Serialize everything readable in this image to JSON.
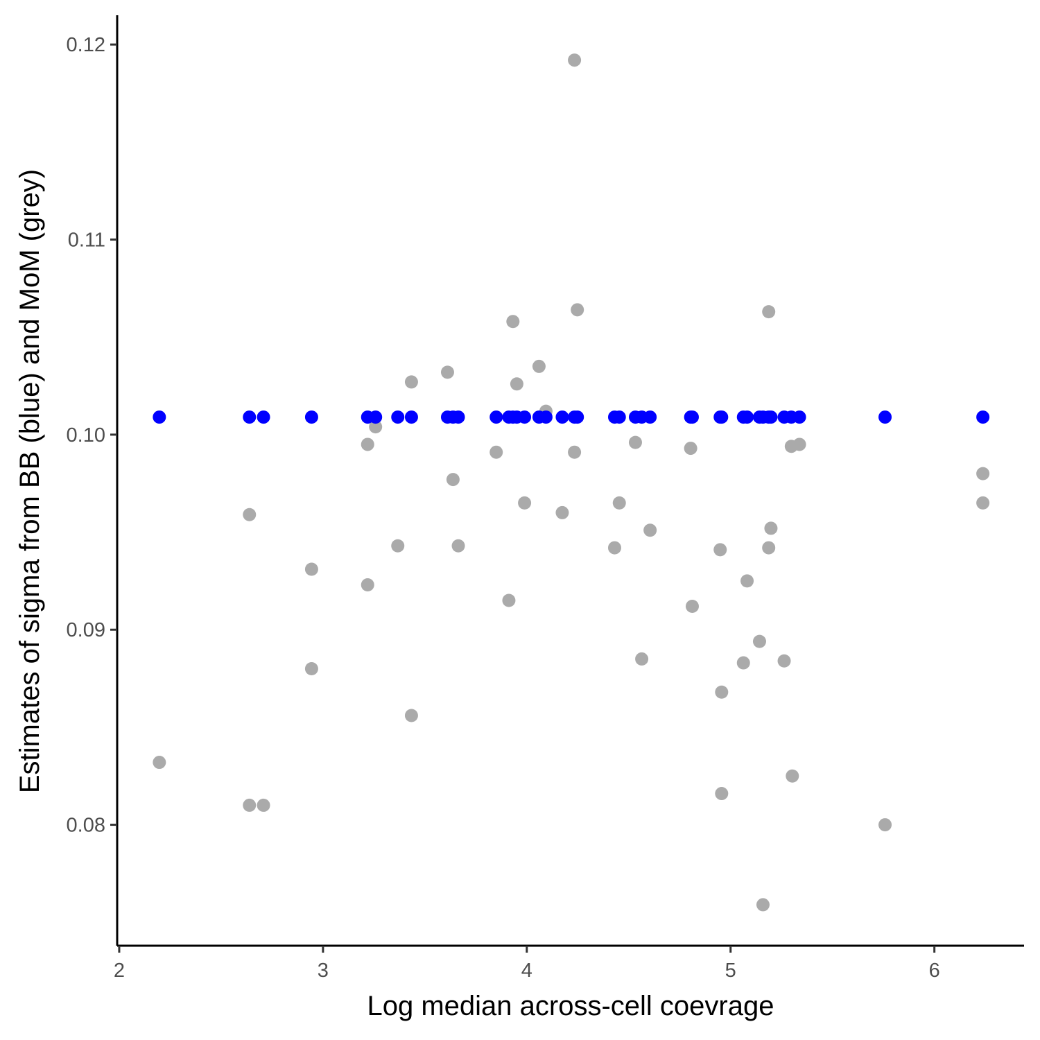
{
  "chart_data": {
    "type": "scatter",
    "title": "",
    "xlabel": "Log median across-cell coevrage",
    "ylabel": "Estimates of sigma from BB (blue) and MoM (grey)",
    "xlim": [
      1.99,
      6.44
    ],
    "ylim": [
      0.0738,
      0.1215
    ],
    "x_ticks": [
      2,
      3,
      4,
      5,
      6
    ],
    "x_tick_labels": [
      "2",
      "3",
      "4",
      "5",
      "6"
    ],
    "y_ticks": [
      0.08,
      0.09,
      0.1,
      0.11,
      0.12
    ],
    "y_tick_labels": [
      "0.08",
      "0.09",
      "0.10",
      "0.11",
      "0.12"
    ],
    "grid": false,
    "legend": "none",
    "series": [
      {
        "color": "#aaaaaa",
        "points": [
          [
            2.197,
            0.0832
          ],
          [
            2.639,
            0.0959
          ],
          [
            2.639,
            0.081
          ],
          [
            2.708,
            0.081
          ],
          [
            2.944,
            0.0931
          ],
          [
            2.944,
            0.088
          ],
          [
            3.219,
            0.0995
          ],
          [
            3.219,
            0.0923
          ],
          [
            3.258,
            0.1004
          ],
          [
            3.367,
            0.0943
          ],
          [
            3.434,
            0.1027
          ],
          [
            3.434,
            0.0856
          ],
          [
            3.611,
            0.1032
          ],
          [
            3.638,
            0.0977
          ],
          [
            3.664,
            0.0943
          ],
          [
            3.85,
            0.0991
          ],
          [
            3.912,
            0.0915
          ],
          [
            3.932,
            0.1058
          ],
          [
            3.951,
            0.1026
          ],
          [
            3.989,
            0.0965
          ],
          [
            4.06,
            0.1035
          ],
          [
            4.094,
            0.1012
          ],
          [
            4.174,
            0.096
          ],
          [
            4.234,
            0.1192
          ],
          [
            4.234,
            0.0991
          ],
          [
            4.248,
            0.1064
          ],
          [
            4.431,
            0.0942
          ],
          [
            4.454,
            0.0965
          ],
          [
            4.533,
            0.0996
          ],
          [
            4.564,
            0.0885
          ],
          [
            4.605,
            0.0951
          ],
          [
            4.804,
            0.0993
          ],
          [
            4.812,
            0.0912
          ],
          [
            4.949,
            0.0941
          ],
          [
            4.956,
            0.0868
          ],
          [
            4.956,
            0.0816
          ],
          [
            5.063,
            0.0883
          ],
          [
            5.081,
            0.0925
          ],
          [
            5.142,
            0.0894
          ],
          [
            5.159,
            0.0759
          ],
          [
            5.187,
            0.1063
          ],
          [
            5.187,
            0.0942
          ],
          [
            5.198,
            0.0952
          ],
          [
            5.263,
            0.0884
          ],
          [
            5.298,
            0.0994
          ],
          [
            5.303,
            0.0825
          ],
          [
            5.338,
            0.0995
          ],
          [
            5.758,
            0.08
          ],
          [
            6.238,
            0.098
          ],
          [
            6.238,
            0.0965
          ]
        ]
      },
      {
        "color": "#0000ff",
        "constant_y": 0.1009,
        "x": [
          2.197,
          2.639,
          2.708,
          2.944,
          3.219,
          3.258,
          3.367,
          3.434,
          3.611,
          3.638,
          3.664,
          3.85,
          3.912,
          3.932,
          3.951,
          3.989,
          4.06,
          4.094,
          4.174,
          4.234,
          4.248,
          4.431,
          4.454,
          4.533,
          4.564,
          4.605,
          4.804,
          4.812,
          4.949,
          4.956,
          5.063,
          5.081,
          5.142,
          5.159,
          5.187,
          5.198,
          5.263,
          5.298,
          5.338,
          5.758,
          6.238
        ]
      }
    ]
  }
}
